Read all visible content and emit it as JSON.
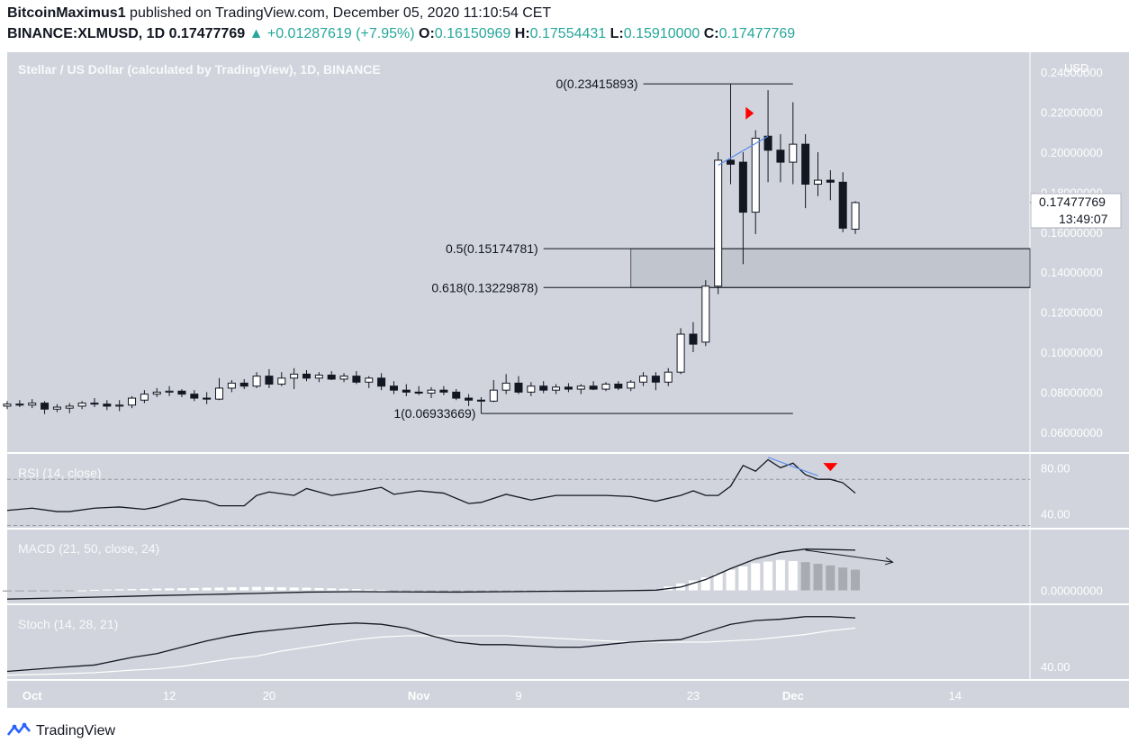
{
  "header": {
    "author": "BitcoinMaximus1",
    "published": "published on TradingView.com, December 05, 2020 11:10:54 CET",
    "symbol": "BINANCE:XLMUSD, 1D",
    "last": "0.17477769",
    "change_arrow": "▲",
    "change": "+0.01287619 (+7.95%)",
    "o_label": "O:",
    "o": "0.16150969",
    "h_label": "H:",
    "h": "0.17554431",
    "l_label": "L:",
    "l": "0.15910000",
    "c_label": "C:",
    "c": "0.17477769"
  },
  "footer": {
    "brand": "TradingView",
    "logo_icon": "tradingview-logo-icon"
  },
  "colors": {
    "pane_bg": "#d1d4dc",
    "up_body": "#ffffff",
    "down_body": "#131722",
    "accent_up": "#26a69a",
    "divergence": "#5b8def",
    "marker": "#ff0000",
    "histogram_up": "#ffffff",
    "histogram_down": "#a9abb3",
    "signal": "#ffffff"
  },
  "chart_data": [
    {
      "type": "candlestick",
      "title": "Stellar / US Dollar (calculated by TradingView), 1D, BINANCE",
      "currency": "USD",
      "ylim": [
        0.05,
        0.25
      ],
      "y_ticks": [
        "0.06000000",
        "0.08000000",
        "0.10000000",
        "0.12000000",
        "0.14000000",
        "0.16000000",
        "0.18000000",
        "0.20000000",
        "0.22000000",
        "0.24000000"
      ],
      "y_tick_values": [
        0.06,
        0.08,
        0.1,
        0.12,
        0.14,
        0.16,
        0.18,
        0.2,
        0.22,
        0.24
      ],
      "x_ticks": [
        {
          "label": "Oct",
          "day": 0
        },
        {
          "label": "12",
          "day": 11
        },
        {
          "label": "20",
          "day": 19
        },
        {
          "label": "Nov",
          "day": 31
        },
        {
          "label": "9",
          "day": 39
        },
        {
          "label": "23",
          "day": 53
        },
        {
          "label": "Dec",
          "day": 61
        },
        {
          "label": "14",
          "day": 74
        }
      ],
      "x_range_days": [
        -2,
        80
      ],
      "last_price_label": "0.17477769",
      "countdown_label": "13:49:07",
      "candles": [
        {
          "d": -2,
          "o": 0.073,
          "h": 0.0755,
          "l": 0.0715,
          "c": 0.074
        },
        {
          "d": -1,
          "o": 0.074,
          "h": 0.076,
          "l": 0.0725,
          "c": 0.0735
        },
        {
          "d": 0,
          "o": 0.0735,
          "h": 0.0765,
          "l": 0.072,
          "c": 0.0745
        },
        {
          "d": 1,
          "o": 0.0745,
          "h": 0.0755,
          "l": 0.069,
          "c": 0.0715
        },
        {
          "d": 2,
          "o": 0.0715,
          "h": 0.074,
          "l": 0.07,
          "c": 0.0725
        },
        {
          "d": 3,
          "o": 0.072,
          "h": 0.0745,
          "l": 0.0695,
          "c": 0.073
        },
        {
          "d": 4,
          "o": 0.073,
          "h": 0.0755,
          "l": 0.0715,
          "c": 0.0745
        },
        {
          "d": 5,
          "o": 0.0745,
          "h": 0.077,
          "l": 0.0725,
          "c": 0.074
        },
        {
          "d": 6,
          "o": 0.074,
          "h": 0.076,
          "l": 0.071,
          "c": 0.073
        },
        {
          "d": 7,
          "o": 0.073,
          "h": 0.076,
          "l": 0.0705,
          "c": 0.0735
        },
        {
          "d": 8,
          "o": 0.0735,
          "h": 0.078,
          "l": 0.072,
          "c": 0.077
        },
        {
          "d": 9,
          "o": 0.076,
          "h": 0.081,
          "l": 0.0745,
          "c": 0.079
        },
        {
          "d": 10,
          "o": 0.079,
          "h": 0.082,
          "l": 0.0775,
          "c": 0.08
        },
        {
          "d": 11,
          "o": 0.08,
          "h": 0.083,
          "l": 0.078,
          "c": 0.0805
        },
        {
          "d": 12,
          "o": 0.0805,
          "h": 0.0815,
          "l": 0.0775,
          "c": 0.079
        },
        {
          "d": 13,
          "o": 0.079,
          "h": 0.081,
          "l": 0.0755,
          "c": 0.077
        },
        {
          "d": 14,
          "o": 0.077,
          "h": 0.08,
          "l": 0.074,
          "c": 0.0765
        },
        {
          "d": 15,
          "o": 0.0765,
          "h": 0.087,
          "l": 0.076,
          "c": 0.082
        },
        {
          "d": 16,
          "o": 0.082,
          "h": 0.086,
          "l": 0.08,
          "c": 0.0845
        },
        {
          "d": 17,
          "o": 0.0845,
          "h": 0.0865,
          "l": 0.0815,
          "c": 0.083
        },
        {
          "d": 18,
          "o": 0.083,
          "h": 0.09,
          "l": 0.082,
          "c": 0.088
        },
        {
          "d": 19,
          "o": 0.088,
          "h": 0.0915,
          "l": 0.082,
          "c": 0.084
        },
        {
          "d": 20,
          "o": 0.084,
          "h": 0.09,
          "l": 0.083,
          "c": 0.087
        },
        {
          "d": 21,
          "o": 0.087,
          "h": 0.092,
          "l": 0.0815,
          "c": 0.089
        },
        {
          "d": 22,
          "o": 0.089,
          "h": 0.091,
          "l": 0.0855,
          "c": 0.087
        },
        {
          "d": 23,
          "o": 0.087,
          "h": 0.09,
          "l": 0.085,
          "c": 0.0885
        },
        {
          "d": 24,
          "o": 0.0885,
          "h": 0.0905,
          "l": 0.086,
          "c": 0.0865
        },
        {
          "d": 25,
          "o": 0.0865,
          "h": 0.0895,
          "l": 0.085,
          "c": 0.088
        },
        {
          "d": 26,
          "o": 0.088,
          "h": 0.0905,
          "l": 0.084,
          "c": 0.085
        },
        {
          "d": 27,
          "o": 0.085,
          "h": 0.088,
          "l": 0.082,
          "c": 0.087
        },
        {
          "d": 28,
          "o": 0.087,
          "h": 0.0895,
          "l": 0.081,
          "c": 0.083
        },
        {
          "d": 29,
          "o": 0.083,
          "h": 0.0855,
          "l": 0.079,
          "c": 0.081
        },
        {
          "d": 30,
          "o": 0.081,
          "h": 0.084,
          "l": 0.078,
          "c": 0.08
        },
        {
          "d": 31,
          "o": 0.08,
          "h": 0.083,
          "l": 0.0785,
          "c": 0.0795
        },
        {
          "d": 32,
          "o": 0.0795,
          "h": 0.0825,
          "l": 0.077,
          "c": 0.081
        },
        {
          "d": 33,
          "o": 0.081,
          "h": 0.083,
          "l": 0.0785,
          "c": 0.08
        },
        {
          "d": 34,
          "o": 0.08,
          "h": 0.0815,
          "l": 0.076,
          "c": 0.077
        },
        {
          "d": 35,
          "o": 0.077,
          "h": 0.079,
          "l": 0.073,
          "c": 0.076
        },
        {
          "d": 36,
          "o": 0.076,
          "h": 0.0775,
          "l": 0.0693,
          "c": 0.0755
        },
        {
          "d": 37,
          "o": 0.0755,
          "h": 0.086,
          "l": 0.075,
          "c": 0.081
        },
        {
          "d": 38,
          "o": 0.081,
          "h": 0.089,
          "l": 0.079,
          "c": 0.0845
        },
        {
          "d": 39,
          "o": 0.0845,
          "h": 0.088,
          "l": 0.079,
          "c": 0.08
        },
        {
          "d": 40,
          "o": 0.08,
          "h": 0.085,
          "l": 0.078,
          "c": 0.083
        },
        {
          "d": 41,
          "o": 0.083,
          "h": 0.0855,
          "l": 0.0795,
          "c": 0.081
        },
        {
          "d": 42,
          "o": 0.081,
          "h": 0.084,
          "l": 0.079,
          "c": 0.0825
        },
        {
          "d": 43,
          "o": 0.0825,
          "h": 0.0845,
          "l": 0.08,
          "c": 0.0815
        },
        {
          "d": 44,
          "o": 0.0815,
          "h": 0.084,
          "l": 0.079,
          "c": 0.083
        },
        {
          "d": 45,
          "o": 0.083,
          "h": 0.0855,
          "l": 0.081,
          "c": 0.0815
        },
        {
          "d": 46,
          "o": 0.0815,
          "h": 0.085,
          "l": 0.0805,
          "c": 0.084
        },
        {
          "d": 47,
          "o": 0.084,
          "h": 0.0855,
          "l": 0.081,
          "c": 0.082
        },
        {
          "d": 48,
          "o": 0.082,
          "h": 0.086,
          "l": 0.0805,
          "c": 0.085
        },
        {
          "d": 49,
          "o": 0.085,
          "h": 0.09,
          "l": 0.083,
          "c": 0.088
        },
        {
          "d": 50,
          "o": 0.088,
          "h": 0.09,
          "l": 0.081,
          "c": 0.085
        },
        {
          "d": 51,
          "o": 0.085,
          "h": 0.092,
          "l": 0.083,
          "c": 0.09
        },
        {
          "d": 52,
          "o": 0.09,
          "h": 0.112,
          "l": 0.089,
          "c": 0.109
        },
        {
          "d": 53,
          "o": 0.109,
          "h": 0.115,
          "l": 0.1,
          "c": 0.104
        },
        {
          "d": 54,
          "o": 0.105,
          "h": 0.136,
          "l": 0.103,
          "c": 0.133
        },
        {
          "d": 55,
          "o": 0.133,
          "h": 0.2,
          "l": 0.129,
          "c": 0.196
        },
        {
          "d": 56,
          "o": 0.196,
          "h": 0.234,
          "l": 0.184,
          "c": 0.194
        },
        {
          "d": 57,
          "o": 0.195,
          "h": 0.2,
          "l": 0.144,
          "c": 0.17
        },
        {
          "d": 58,
          "o": 0.17,
          "h": 0.211,
          "l": 0.159,
          "c": 0.207
        },
        {
          "d": 59,
          "o": 0.208,
          "h": 0.231,
          "l": 0.185,
          "c": 0.201
        },
        {
          "d": 60,
          "o": 0.201,
          "h": 0.209,
          "l": 0.185,
          "c": 0.195
        },
        {
          "d": 61,
          "o": 0.195,
          "h": 0.225,
          "l": 0.184,
          "c": 0.204
        },
        {
          "d": 62,
          "o": 0.204,
          "h": 0.209,
          "l": 0.172,
          "c": 0.184
        },
        {
          "d": 63,
          "o": 0.184,
          "h": 0.2,
          "l": 0.178,
          "c": 0.186
        },
        {
          "d": 64,
          "o": 0.186,
          "h": 0.191,
          "l": 0.176,
          "c": 0.185
        },
        {
          "d": 65,
          "o": 0.185,
          "h": 0.19,
          "l": 0.16,
          "c": 0.162
        },
        {
          "d": 66,
          "o": 0.1615,
          "h": 0.1755,
          "l": 0.1591,
          "c": 0.1748
        }
      ],
      "fib_levels": [
        {
          "label": "0(0.23415893)",
          "value": 0.23415893,
          "from_day": 49,
          "to_day": 61
        },
        {
          "label": "0.5(0.15174781)",
          "value": 0.15174781,
          "from_day": 41,
          "to_day": 80
        },
        {
          "label": "0.618(0.13229878)",
          "value": 0.13229878,
          "from_day": 41,
          "to_day": 80
        },
        {
          "label": "1(0.06933669)",
          "value": 0.06933669,
          "from_day": 36,
          "to_day": 61
        }
      ],
      "zone": {
        "from_day": 48,
        "to_day": 80,
        "top": 0.15174781,
        "bottom": 0.13229878
      },
      "divergence_line": {
        "from_day": 55,
        "from_value": 0.1935,
        "to_day": 59,
        "to_value": 0.208
      },
      "marker_day": 57.5,
      "marker_value": 0.2195
    },
    {
      "type": "line",
      "title": "RSI (14, close)",
      "ylim": [
        28,
        92
      ],
      "y_ticks": [
        "40.00",
        "80.00"
      ],
      "y_tick_values": [
        40,
        80
      ],
      "bands": [
        70,
        30
      ],
      "x": [
        -2,
        0,
        2,
        3,
        5,
        7,
        9,
        10,
        12,
        14,
        15,
        17,
        18,
        19,
        21,
        22,
        24,
        26,
        28,
        29,
        31,
        33,
        35,
        36,
        38,
        40,
        42,
        44,
        46,
        48,
        49,
        50,
        52,
        53,
        54,
        55,
        56,
        57,
        58,
        59,
        60,
        61,
        62,
        63,
        64,
        65,
        66
      ],
      "values": [
        43,
        45,
        42,
        42,
        45,
        46,
        44,
        46,
        53,
        51,
        47,
        47,
        56,
        59,
        56,
        62,
        56,
        59,
        63,
        57,
        60,
        58,
        49,
        50,
        57,
        52,
        56,
        56,
        56,
        55,
        53,
        51,
        56,
        60,
        56,
        56,
        64,
        82,
        77,
        87,
        80,
        84,
        74,
        70,
        70,
        67,
        58
      ],
      "divergence_line": {
        "from_day": 59,
        "from_value": 89,
        "to_day": 63,
        "to_value": 73
      },
      "marker_day": 64,
      "marker_value": 81
    },
    {
      "type": "line+histogram",
      "title": "MACD (21, 50, close, 24)",
      "ylim": [
        -0.006,
        0.028
      ],
      "y_ticks": [
        "0.00000000"
      ],
      "y_tick_values": [
        0
      ],
      "x": [
        -2,
        2,
        6,
        10,
        14,
        18,
        22,
        26,
        30,
        34,
        38,
        42,
        46,
        50,
        52,
        54,
        56,
        58,
        60,
        62,
        64,
        66
      ],
      "macd": [
        -0.004,
        -0.0035,
        -0.003,
        -0.0024,
        -0.0019,
        -0.0014,
        -0.0008,
        -0.0006,
        -0.0007,
        -0.0008,
        -0.0006,
        -0.0004,
        -0.0003,
        0.0001,
        0.0015,
        0.005,
        0.01,
        0.0145,
        0.0175,
        0.019,
        0.0188,
        0.0185
      ],
      "histogram": [
        -0.0006,
        -0.0004,
        0.0004,
        0.0008,
        0.0012,
        0.0016,
        0.0012,
        0.0006,
        -0.0004,
        -0.0007,
        -0.0006,
        -0.0004,
        -0.0002,
        0.0004,
        0.0032,
        0.006,
        0.0095,
        0.0125,
        0.014,
        0.013,
        0.0115,
        0.0095
      ],
      "arrow": {
        "from_day": 62,
        "from_value": 0.0185,
        "to_day": 69,
        "to_value": 0.013
      }
    },
    {
      "type": "line",
      "title": "Stoch (14, 28, 21)",
      "ylim": [
        30,
        88
      ],
      "y_ticks": [
        "40.00"
      ],
      "y_tick_values": [
        40
      ],
      "x": [
        -2,
        2,
        5,
        8,
        10,
        12,
        14,
        16,
        18,
        20,
        22,
        24,
        26,
        28,
        30,
        32,
        34,
        36,
        38,
        40,
        42,
        44,
        46,
        48,
        50,
        52,
        54,
        56,
        58,
        60,
        62,
        64,
        66
      ],
      "k": [
        36,
        39,
        41,
        47,
        50,
        55,
        60,
        64,
        67,
        69,
        71,
        73,
        74,
        73,
        70,
        64,
        59,
        57,
        57,
        56,
        55,
        55,
        57,
        59,
        60,
        61,
        67,
        73,
        76,
        77,
        79,
        79,
        78
      ],
      "d": [
        33,
        34,
        35,
        37,
        38,
        40,
        43,
        46,
        48,
        52,
        55,
        58,
        61,
        63,
        64,
        64,
        64,
        64,
        64,
        63,
        62,
        61,
        60,
        59,
        59,
        59,
        59,
        60,
        61,
        63,
        65,
        68,
        70
      ]
    }
  ]
}
